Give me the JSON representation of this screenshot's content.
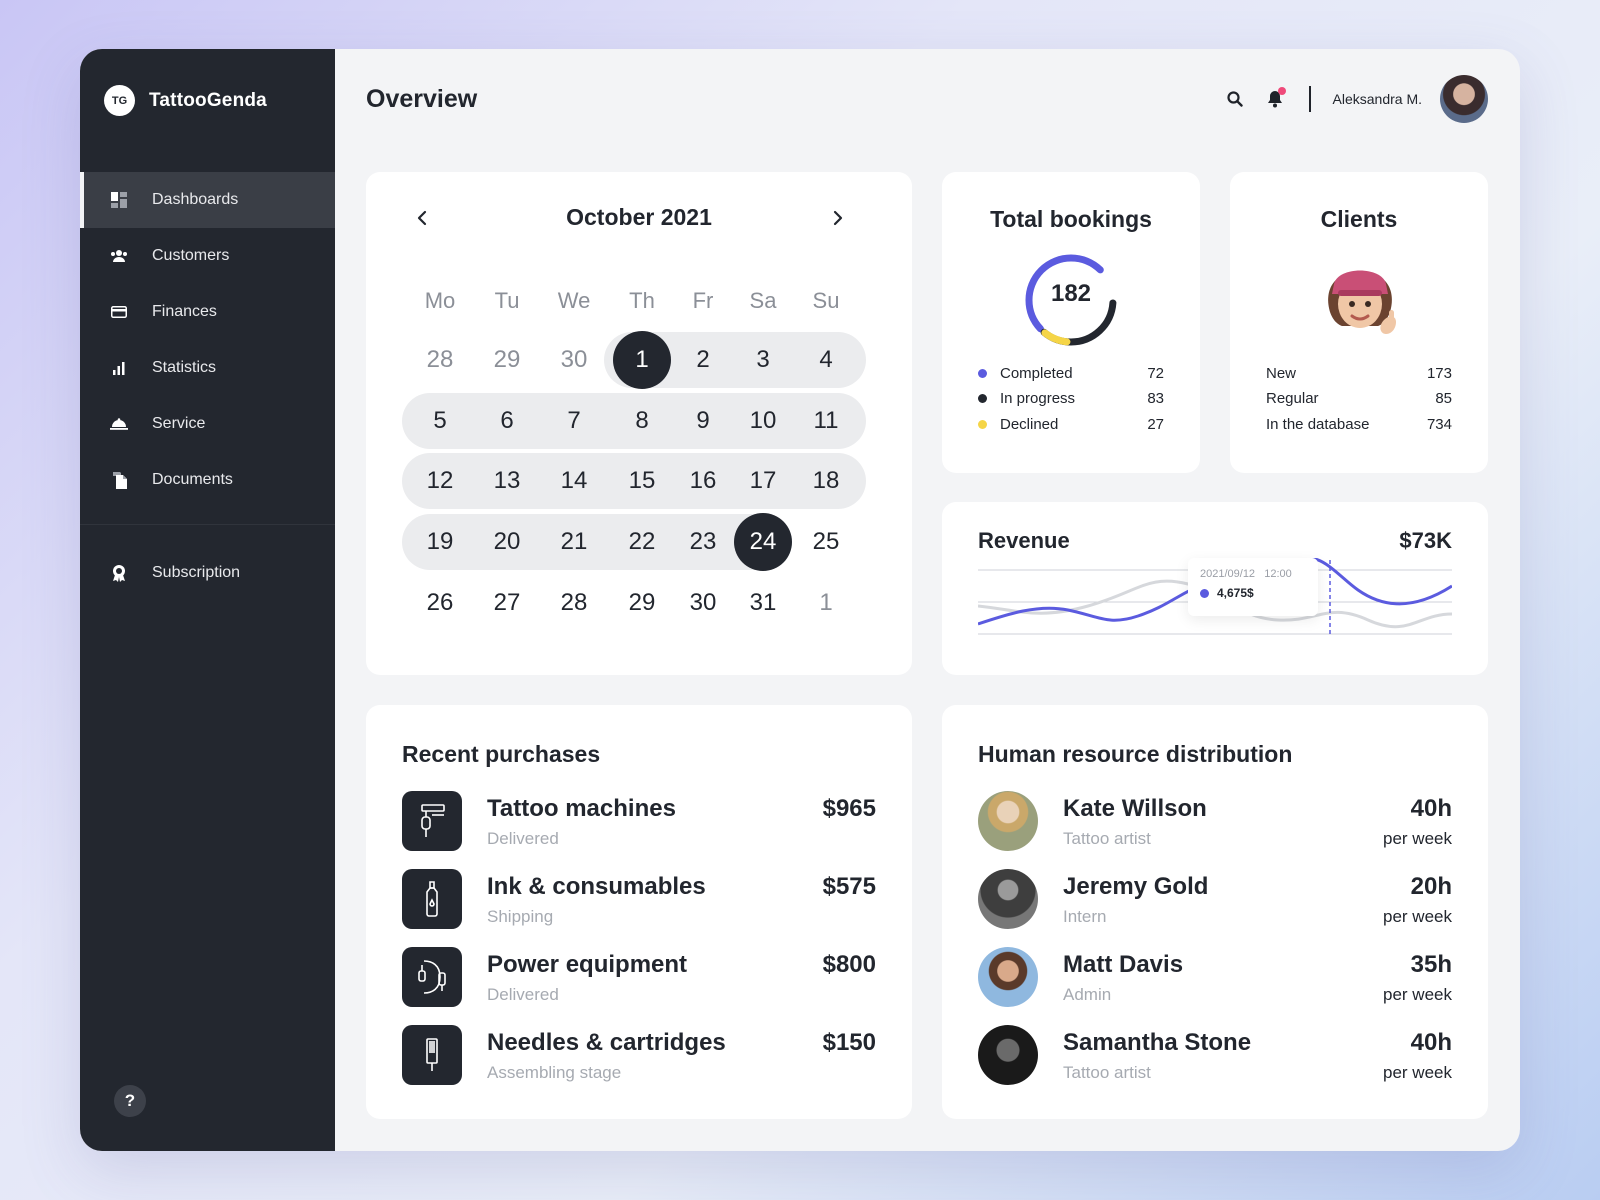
{
  "app": {
    "logo_badge": "TG",
    "name": "TattooGenda"
  },
  "sidebar": {
    "items": [
      {
        "label": "Dashboards",
        "icon": "dashboard-icon",
        "active": true
      },
      {
        "label": "Customers",
        "icon": "users-icon"
      },
      {
        "label": "Finances",
        "icon": "card-icon"
      },
      {
        "label": "Statistics",
        "icon": "bar-chart-icon"
      },
      {
        "label": "Service",
        "icon": "cloche-icon"
      },
      {
        "label": "Documents",
        "icon": "documents-icon"
      }
    ],
    "secondary": [
      {
        "label": "Subscription",
        "icon": "award-icon"
      }
    ],
    "help_label": "?"
  },
  "header": {
    "title": "Overview",
    "user_name": "Aleksandra M."
  },
  "calendar": {
    "month_label": "October 2021",
    "weekdays": [
      "Mo",
      "Tu",
      "We",
      "Th",
      "Fr",
      "Sa",
      "Su"
    ],
    "weeks": [
      [
        "28",
        "29",
        "30",
        "1",
        "2",
        "3",
        "4"
      ],
      [
        "5",
        "6",
        "7",
        "8",
        "9",
        "10",
        "11"
      ],
      [
        "12",
        "13",
        "14",
        "15",
        "16",
        "17",
        "18"
      ],
      [
        "19",
        "20",
        "21",
        "22",
        "23",
        "24",
        "25"
      ],
      [
        "26",
        "27",
        "28",
        "29",
        "30",
        "31",
        "1"
      ]
    ],
    "selected_start": "1",
    "selected_end": "24"
  },
  "bookings": {
    "title": "Total bookings",
    "total": "182",
    "items": [
      {
        "label": "Completed",
        "value": "72",
        "color": "#5b5bdf"
      },
      {
        "label": "In progress",
        "value": "83",
        "color": "#23272f"
      },
      {
        "label": "Declined",
        "value": "27",
        "color": "#f5d547"
      }
    ]
  },
  "clients": {
    "title": "Clients",
    "items": [
      {
        "label": "New",
        "value": "173"
      },
      {
        "label": "Regular",
        "value": "85"
      },
      {
        "label": "In the database",
        "value": "734"
      }
    ]
  },
  "revenue": {
    "title": "Revenue",
    "total": "$73K",
    "tooltip_date": "2021/09/12",
    "tooltip_time": "12:00",
    "tooltip_value": "4,675$",
    "accent": "#5b5bdf"
  },
  "purchases": {
    "title": "Recent purchases",
    "items": [
      {
        "name": "Tattoo machines",
        "status": "Delivered",
        "amount": "$965",
        "icon": "tattoo-machine-icon"
      },
      {
        "name": "Ink & consumables",
        "status": "Shipping",
        "amount": "$575",
        "icon": "ink-bottle-icon"
      },
      {
        "name": "Power equipment",
        "status": "Delivered",
        "amount": "$800",
        "icon": "power-cable-icon"
      },
      {
        "name": "Needles & cartridges",
        "status": "Assembling stage",
        "amount": "$150",
        "icon": "needle-cartridge-icon"
      }
    ]
  },
  "hr": {
    "title": "Human resource distribution",
    "items": [
      {
        "name": "Kate Willson",
        "role": "Tattoo artist",
        "hours": "40h",
        "per": "per week"
      },
      {
        "name": "Jeremy Gold",
        "role": "Intern",
        "hours": "20h",
        "per": "per week"
      },
      {
        "name": "Matt Davis",
        "role": "Admin",
        "hours": "35h",
        "per": "per week"
      },
      {
        "name": "Samantha Stone",
        "role": "Tattoo artist",
        "hours": "40h",
        "per": "per week"
      }
    ]
  }
}
